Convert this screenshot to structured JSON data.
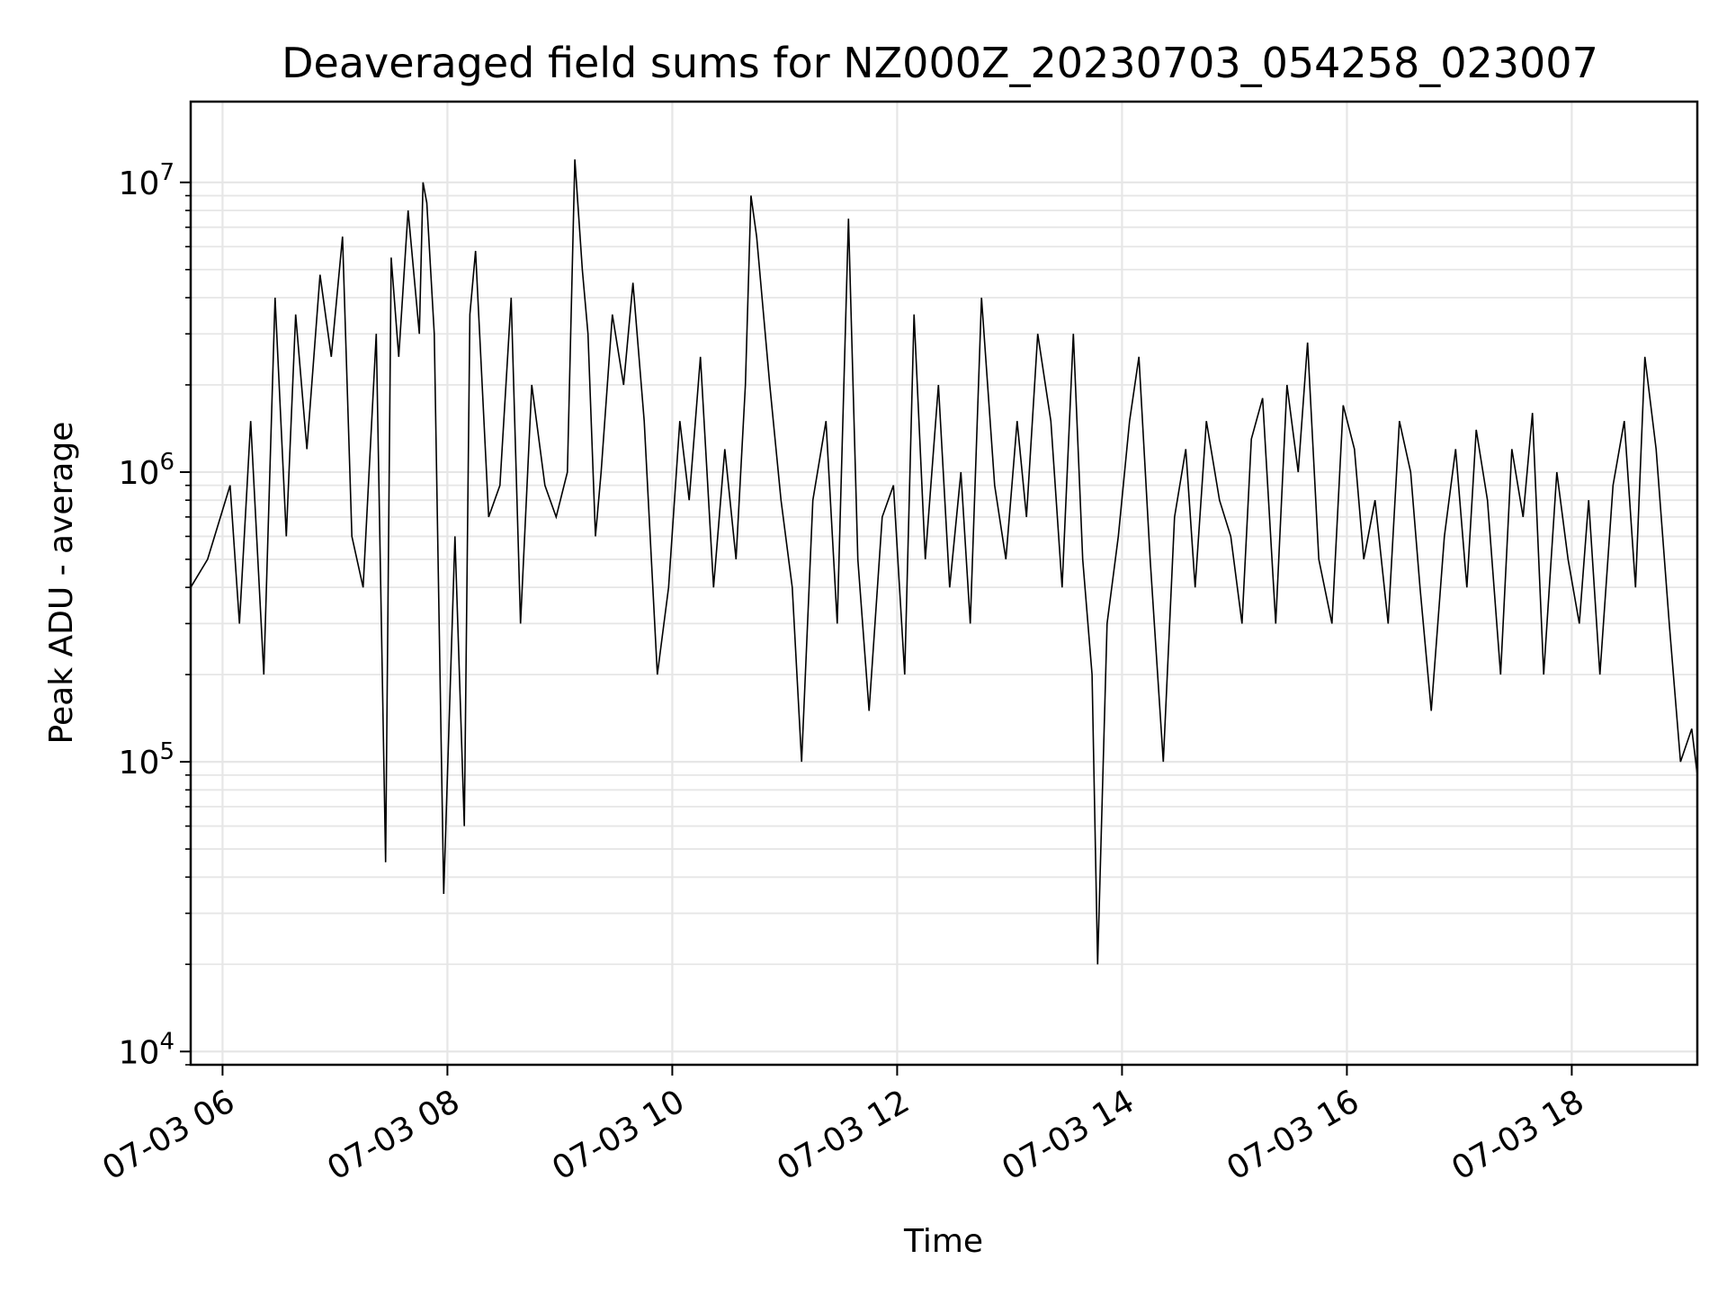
{
  "chart_data": {
    "type": "line",
    "title": "Deaveraged field sums for NZ000Z_20230703_054258_023007",
    "xlabel": "Time",
    "ylabel": "Peak ADU - average",
    "yscale": "log",
    "ylim": [
      9000,
      19000000
    ],
    "xlim": [
      "07-03 05:43",
      "07-03 19:07"
    ],
    "grid": true,
    "line_color": "#000000",
    "grid_color": "#e6e6e6",
    "x_ticks": [
      {
        "t": "07-03 06:00",
        "label": "07-03 06"
      },
      {
        "t": "07-03 08:00",
        "label": "07-03 08"
      },
      {
        "t": "07-03 10:00",
        "label": "07-03 10"
      },
      {
        "t": "07-03 12:00",
        "label": "07-03 12"
      },
      {
        "t": "07-03 14:00",
        "label": "07-03 14"
      },
      {
        "t": "07-03 16:00",
        "label": "07-03 16"
      },
      {
        "t": "07-03 18:00",
        "label": "07-03 18"
      }
    ],
    "y_ticks": [
      {
        "v": 10000,
        "base": "10",
        "exp": "4"
      },
      {
        "v": 100000,
        "base": "10",
        "exp": "5"
      },
      {
        "v": 1000000,
        "base": "10",
        "exp": "6"
      },
      {
        "v": 10000000,
        "base": "10",
        "exp": "7"
      }
    ],
    "series": [
      {
        "x": [
          "07-03 05:43",
          "07-03 05:52",
          "07-03 06:04",
          "07-03 06:09",
          "07-03 06:15",
          "07-03 06:22",
          "07-03 06:28",
          "07-03 06:34",
          "07-03 06:39",
          "07-03 06:45",
          "07-03 06:52",
          "07-03 06:58",
          "07-03 07:04",
          "07-03 07:09",
          "07-03 07:15",
          "07-03 07:22",
          "07-03 07:27",
          "07-03 07:30",
          "07-03 07:34",
          "07-03 07:39",
          "07-03 07:45",
          "07-03 07:47",
          "07-03 07:49",
          "07-03 07:53",
          "07-03 07:58",
          "07-03 08:04",
          "07-03 08:09",
          "07-03 08:12",
          "07-03 08:15",
          "07-03 08:22",
          "07-03 08:28",
          "07-03 08:34",
          "07-03 08:39",
          "07-03 08:45",
          "07-03 08:52",
          "07-03 08:58",
          "07-03 09:04",
          "07-03 09:08",
          "07-03 09:12",
          "07-03 09:15",
          "07-03 09:19",
          "07-03 09:22",
          "07-03 09:28",
          "07-03 09:34",
          "07-03 09:39",
          "07-03 09:45",
          "07-03 09:52",
          "07-03 09:58",
          "07-03 10:04",
          "07-03 10:09",
          "07-03 10:15",
          "07-03 10:22",
          "07-03 10:28",
          "07-03 10:34",
          "07-03 10:39",
          "07-03 10:42",
          "07-03 10:45",
          "07-03 10:52",
          "07-03 10:58",
          "07-03 11:04",
          "07-03 11:09",
          "07-03 11:15",
          "07-03 11:22",
          "07-03 11:28",
          "07-03 11:34",
          "07-03 11:39",
          "07-03 11:45",
          "07-03 11:52",
          "07-03 11:58",
          "07-03 12:04",
          "07-03 12:09",
          "07-03 12:15",
          "07-03 12:22",
          "07-03 12:28",
          "07-03 12:34",
          "07-03 12:39",
          "07-03 12:45",
          "07-03 12:52",
          "07-03 12:58",
          "07-03 13:04",
          "07-03 13:09",
          "07-03 13:15",
          "07-03 13:22",
          "07-03 13:28",
          "07-03 13:34",
          "07-03 13:39",
          "07-03 13:44",
          "07-03 13:47",
          "07-03 13:52",
          "07-03 13:58",
          "07-03 14:04",
          "07-03 14:09",
          "07-03 14:15",
          "07-03 14:22",
          "07-03 14:28",
          "07-03 14:34",
          "07-03 14:39",
          "07-03 14:45",
          "07-03 14:52",
          "07-03 14:58",
          "07-03 15:04",
          "07-03 15:09",
          "07-03 15:15",
          "07-03 15:22",
          "07-03 15:28",
          "07-03 15:34",
          "07-03 15:39",
          "07-03 15:45",
          "07-03 15:52",
          "07-03 15:58",
          "07-03 16:04",
          "07-03 16:09",
          "07-03 16:15",
          "07-03 16:22",
          "07-03 16:28",
          "07-03 16:34",
          "07-03 16:39",
          "07-03 16:45",
          "07-03 16:52",
          "07-03 16:58",
          "07-03 17:04",
          "07-03 17:09",
          "07-03 17:15",
          "07-03 17:22",
          "07-03 17:28",
          "07-03 17:34",
          "07-03 17:39",
          "07-03 17:45",
          "07-03 17:52",
          "07-03 17:58",
          "07-03 18:04",
          "07-03 18:09",
          "07-03 18:15",
          "07-03 18:22",
          "07-03 18:28",
          "07-03 18:34",
          "07-03 18:39",
          "07-03 18:45",
          "07-03 18:52",
          "07-03 18:58",
          "07-03 19:04",
          "07-03 19:07"
        ],
        "y": [
          400000,
          500000,
          900000,
          300000,
          1500000,
          200000,
          4000000,
          600000,
          3500000,
          1200000,
          4800000,
          2500000,
          6500000,
          600000,
          400000,
          3000000,
          45000,
          5500000,
          2500000,
          8000000,
          3000000,
          10000000,
          8500000,
          3000000,
          35000,
          600000,
          60000,
          3500000,
          5800000,
          700000,
          900000,
          4000000,
          300000,
          2000000,
          900000,
          700000,
          1000000,
          12000000,
          5000000,
          3000000,
          600000,
          1000000,
          3500000,
          2000000,
          4500000,
          1500000,
          200000,
          400000,
          1500000,
          800000,
          2500000,
          400000,
          1200000,
          500000,
          2000000,
          9000000,
          6500000,
          2000000,
          800000,
          400000,
          100000,
          800000,
          1500000,
          300000,
          7500000,
          500000,
          150000,
          700000,
          900000,
          200000,
          3500000,
          500000,
          2000000,
          400000,
          1000000,
          300000,
          4000000,
          900000,
          500000,
          1500000,
          700000,
          3000000,
          1500000,
          400000,
          3000000,
          500000,
          200000,
          20000,
          300000,
          600000,
          1500000,
          2500000,
          500000,
          100000,
          700000,
          1200000,
          400000,
          1500000,
          800000,
          600000,
          300000,
          1300000,
          1800000,
          300000,
          2000000,
          1000000,
          2800000,
          500000,
          300000,
          1700000,
          1200000,
          500000,
          800000,
          300000,
          1500000,
          1000000,
          400000,
          150000,
          600000,
          1200000,
          400000,
          1400000,
          800000,
          200000,
          1200000,
          700000,
          1600000,
          200000,
          1000000,
          500000,
          300000,
          800000,
          200000,
          900000,
          1500000,
          400000,
          2500000,
          1200000,
          300000,
          100000,
          130000,
          90000
        ]
      }
    ]
  }
}
